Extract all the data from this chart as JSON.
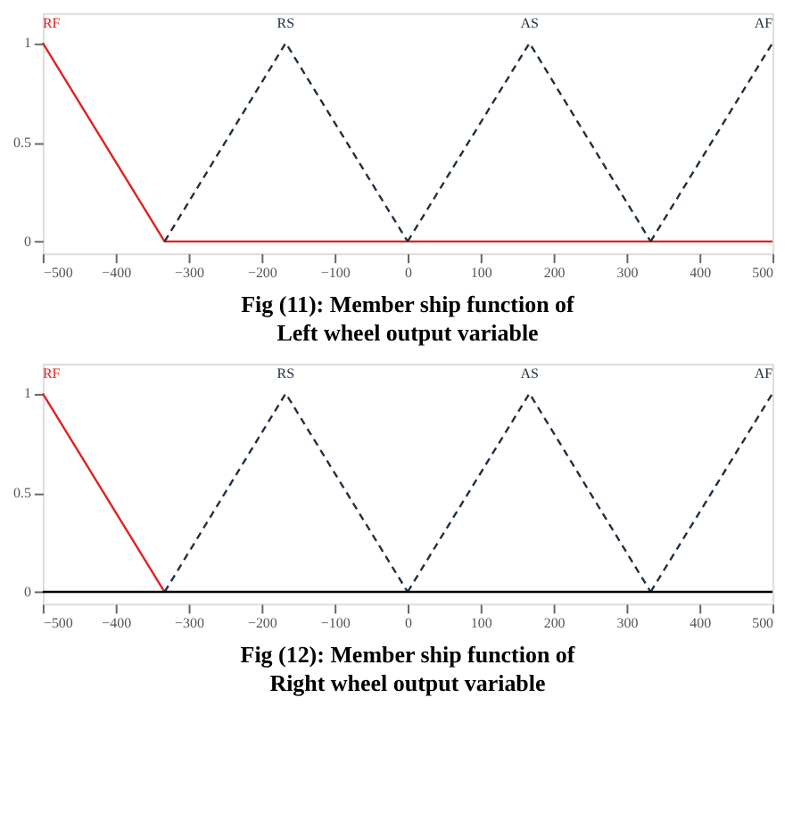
{
  "chart_data": [
    {
      "type": "line",
      "title": "Fig (11): Member ship function of\nLeft wheel output variable",
      "xlim": [
        -500,
        500
      ],
      "xticks": [
        -500,
        -400,
        -300,
        -200,
        -100,
        0,
        100,
        200,
        300,
        400,
        500
      ],
      "ylim": [
        -0.06,
        1.15
      ],
      "yticks": [
        0,
        0.5,
        1
      ],
      "grid": false,
      "series": [
        {
          "color": "#e02020",
          "x": [
            -500,
            -333,
            500
          ],
          "values": [
            1,
            0,
            0
          ],
          "line_style": "solid"
        },
        {
          "color": "#203040",
          "x": [
            -333,
            -167,
            0
          ],
          "values": [
            0,
            1,
            0
          ],
          "line_style": "dashed"
        },
        {
          "color": "#203040",
          "x": [
            0,
            167,
            333
          ],
          "values": [
            0,
            1,
            0
          ],
          "line_style": "dashed"
        },
        {
          "color": "#203040",
          "x": [
            333,
            500
          ],
          "values": [
            0,
            1
          ],
          "line_style": "dashed"
        }
      ],
      "annotations": [
        "RF",
        "RS",
        "AS",
        "AF"
      ]
    },
    {
      "type": "line",
      "title": "Fig (12): Member ship function of\nRight wheel output variable",
      "xlim": [
        -500,
        500
      ],
      "xticks": [
        -500,
        -400,
        -300,
        -200,
        -100,
        0,
        100,
        200,
        300,
        400,
        500
      ],
      "ylim": [
        -0.06,
        1.15
      ],
      "yticks": [
        0,
        0.5,
        1
      ],
      "grid": false,
      "ref_lines": [
        {
          "axis": "y",
          "value": 0,
          "color": "#000000"
        }
      ],
      "series": [
        {
          "color": "#e02020",
          "x": [
            -500,
            -333
          ],
          "values": [
            1,
            0
          ],
          "line_style": "solid"
        },
        {
          "color": "#203040",
          "x": [
            -333,
            -167,
            0
          ],
          "values": [
            0,
            1,
            0
          ],
          "line_style": "dashed"
        },
        {
          "color": "#203040",
          "x": [
            0,
            167,
            333
          ],
          "values": [
            0,
            1,
            0
          ],
          "line_style": "dashed"
        },
        {
          "color": "#203040",
          "x": [
            333,
            500
          ],
          "values": [
            0,
            1
          ],
          "line_style": "dashed"
        }
      ],
      "annotations": [
        "RF",
        "RS",
        "AS",
        "AF"
      ]
    }
  ]
}
